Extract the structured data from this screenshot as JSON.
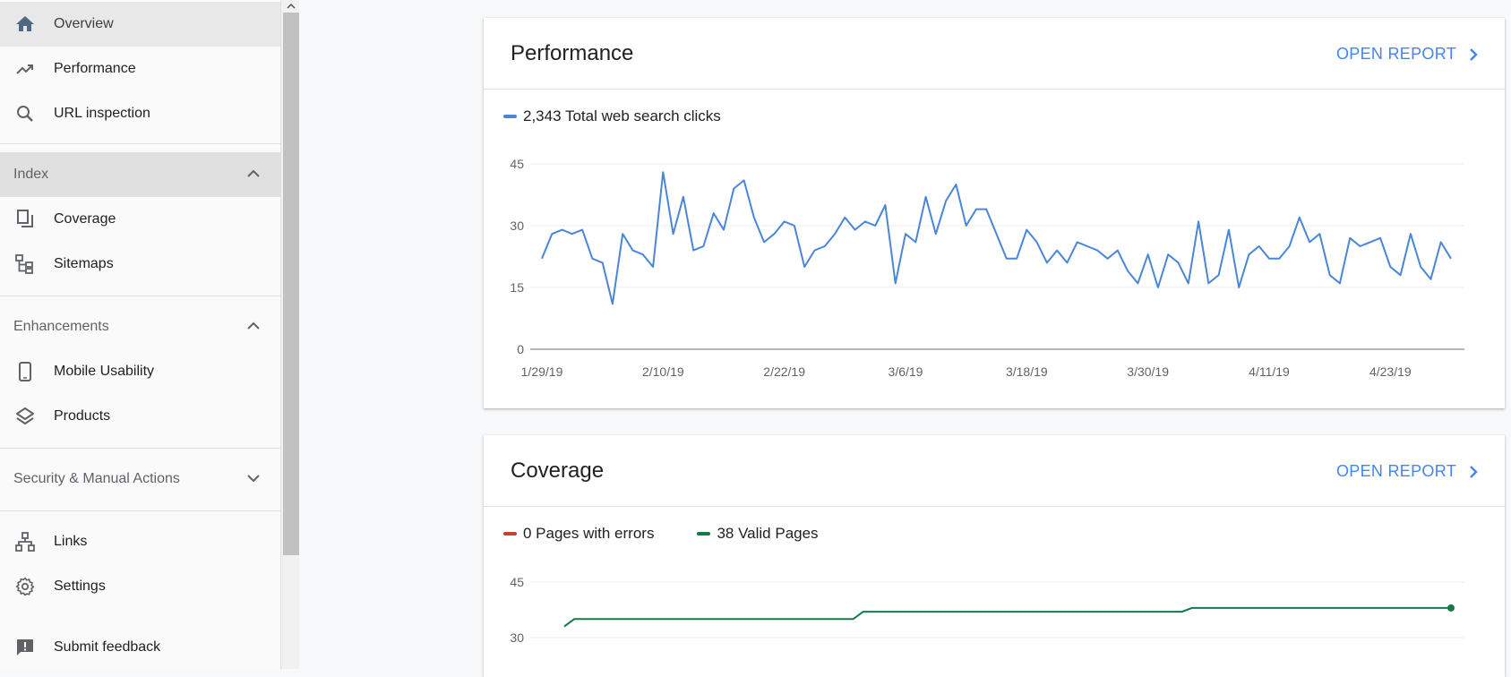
{
  "sidebar": {
    "overview": "Overview",
    "performance": "Performance",
    "url_inspection": "URL inspection",
    "index_section": "Index",
    "coverage": "Coverage",
    "sitemaps": "Sitemaps",
    "enhancements_section": "Enhancements",
    "mobile_usability": "Mobile Usability",
    "products": "Products",
    "security_section": "Security & Manual Actions",
    "links": "Links",
    "settings": "Settings",
    "submit_feedback": "Submit feedback"
  },
  "performance_card": {
    "title": "Performance",
    "open_report": "OPEN REPORT",
    "legend": "2,343 Total web search clicks"
  },
  "coverage_card": {
    "title": "Coverage",
    "open_report": "OPEN REPORT",
    "legend_errors": "0 Pages with errors",
    "legend_valid": "38 Valid Pages"
  },
  "colors": {
    "clicks_line": "#4a86d8",
    "errors": "#c5412f",
    "valid": "#137a48",
    "accent": "#4285f4"
  },
  "chart_data": [
    {
      "type": "line",
      "series": [
        {
          "name": "2,343 Total web search clicks",
          "values": [
            22,
            28,
            29,
            28,
            29,
            22,
            21,
            11,
            28,
            24,
            23,
            20,
            43,
            28,
            37,
            24,
            25,
            33,
            29,
            39,
            41,
            32,
            26,
            28,
            31,
            30,
            20,
            24,
            25,
            28,
            32,
            29,
            31,
            30,
            35,
            16,
            28,
            26,
            37,
            28,
            36,
            40,
            30,
            34,
            34,
            28,
            22,
            22,
            29,
            26,
            21,
            24,
            21,
            26,
            25,
            24,
            22,
            24,
            19,
            16,
            23,
            15,
            23,
            21,
            16,
            31,
            16,
            18,
            29,
            15,
            23,
            25,
            22,
            22,
            25,
            32,
            26,
            28,
            18,
            16,
            27,
            25,
            26,
            27,
            20,
            18,
            28,
            20,
            17,
            26,
            22
          ]
        }
      ],
      "x_tick_labels": [
        "1/29/19",
        "2/10/19",
        "2/22/19",
        "3/6/19",
        "3/18/19",
        "3/30/19",
        "4/11/19",
        "4/23/19"
      ],
      "y_ticks": [
        0,
        15,
        30,
        45
      ],
      "ylim": [
        0,
        45
      ],
      "grid": true
    },
    {
      "type": "line",
      "series": [
        {
          "name": "38 Valid Pages",
          "values": [
            33,
            35,
            35,
            35,
            35,
            35,
            35,
            35,
            35,
            35,
            35,
            35,
            35,
            35,
            35,
            35,
            35,
            35,
            35,
            35,
            35,
            35,
            35,
            35,
            35,
            35,
            35,
            35,
            35,
            35,
            37,
            37,
            37,
            37,
            37,
            37,
            37,
            37,
            37,
            37,
            37,
            37,
            37,
            37,
            37,
            37,
            37,
            37,
            37,
            37,
            37,
            37,
            37,
            37,
            37,
            37,
            37,
            37,
            37,
            37,
            37,
            37,
            37,
            38,
            38,
            38,
            38,
            38,
            38,
            38,
            38,
            38,
            38,
            38,
            38,
            38,
            38,
            38,
            38,
            38,
            38,
            38,
            38,
            38,
            38,
            38,
            38,
            38,
            38,
            38
          ]
        }
      ],
      "y_ticks": [
        30,
        45
      ],
      "grid": true
    }
  ]
}
